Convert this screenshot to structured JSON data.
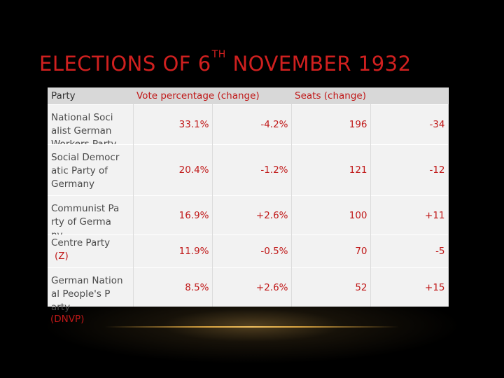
{
  "title_main": "ELECTIONS OF 6",
  "title_sup": "TH",
  "title_rest": " NOVEMBER 1932",
  "table": {
    "headers": {
      "party": "Party",
      "vote": "Vote percentage (change)",
      "seats": "Seats (change)"
    },
    "rows": [
      {
        "party": "National Soci\nalist German\nWorkers Party",
        "abbr": "",
        "vote": "33.1%",
        "vote_change": "-4.2%",
        "seats": "196",
        "seats_change": "-34"
      },
      {
        "party": "Social Democr\natic Party of\n Germany",
        "abbr": "",
        "vote": "20.4%",
        "vote_change": "-1.2%",
        "seats": "121",
        "seats_change": "-12"
      },
      {
        "party": "Communist Pa\nrty of Germa\nny",
        "abbr": "",
        "vote": "16.9%",
        "vote_change": "+2.6%",
        "seats": "100",
        "seats_change": "+11"
      },
      {
        "party": "Centre Party",
        "abbr": "(Z)",
        "vote": "11.9%",
        "vote_change": "-0.5%",
        "seats": "70",
        "seats_change": "-5"
      },
      {
        "party": "German Nation\nal People's P\narty",
        "abbr": "(DNVP)",
        "vote": "8.5%",
        "vote_change": "+2.6%",
        "seats": "52",
        "seats_change": "+15"
      }
    ]
  },
  "colors": {
    "background": "#000000",
    "title": "#d0201f",
    "accent_value": "#c01818",
    "glow": "#d9a441"
  }
}
